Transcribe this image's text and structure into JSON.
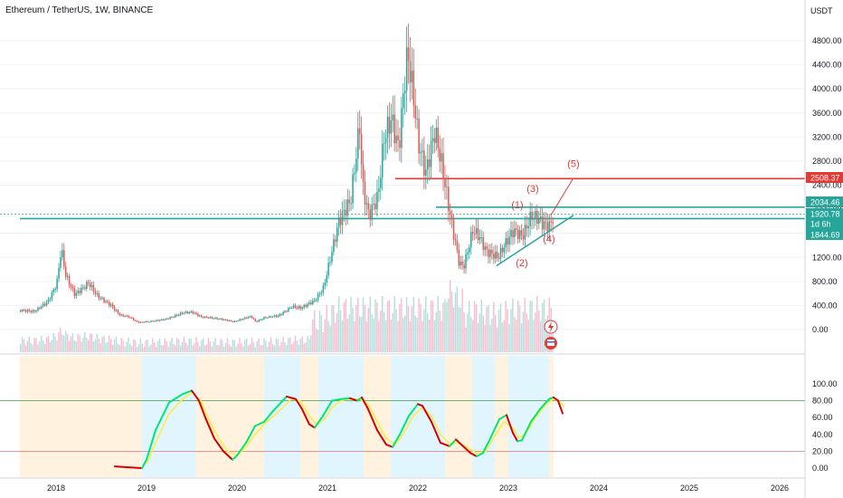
{
  "header": {
    "title": "Ethereum / TetherUS, 1W, BINANCE",
    "currency": "USDT"
  },
  "colors": {
    "up": "#26a69a",
    "down": "#ef5350",
    "teal_line": "#26a69a",
    "resistance": "#e53935",
    "stoch_k": "#00e676",
    "stoch_d": "#ffeb3b",
    "stoch_down": "#d50000",
    "band_blue": "#e1f5fe",
    "band_orange": "#fff3e0"
  },
  "chart_data": [
    {
      "type": "candlestick",
      "symbol": "Ethereum / TetherUS",
      "interval": "1W",
      "exchange": "BINANCE",
      "y_ticks": [
        "4800.00",
        "4400.00",
        "4000.00",
        "3600.00",
        "3200.00",
        "2800.00",
        "2400.00",
        "2000.00",
        "1600.00",
        "1200.00",
        "800.00",
        "400.00",
        "0.00"
      ],
      "y_range": [
        0,
        5000
      ],
      "x_ticks": [
        "2018",
        "2019",
        "2020",
        "2021",
        "2022",
        "2023",
        "2024",
        "2025",
        "2026"
      ],
      "price_labels": [
        {
          "value": 2508.37,
          "text": "2508.37",
          "color": "#e53935"
        },
        {
          "value": 2034.46,
          "text": "2034.46",
          "color": "#26a69a"
        },
        {
          "value": 1920.78,
          "text": "1920.78",
          "color": "#26a69a"
        },
        {
          "value": 1920.78,
          "text": "1d 6h",
          "color": "#26a69a"
        },
        {
          "value": 1844.69,
          "text": "1844.69",
          "color": "#26a69a"
        }
      ],
      "horizontal_lines": [
        {
          "value": 2508.37,
          "from": 2021.75,
          "color": "#e53935"
        },
        {
          "value": 2034.46,
          "from": 2022.2,
          "color": "#26a69a"
        },
        {
          "value": 1844.69,
          "from": 2017.6,
          "color": "#26a69a"
        }
      ],
      "trendline": {
        "from": [
          2022.87,
          1060
        ],
        "to": [
          2023.72,
          1900
        ]
      },
      "projection": {
        "from": [
          2023.47,
          1900
        ],
        "to": [
          2023.72,
          2520
        ]
      },
      "wave_labels": [
        {
          "text": "(1)",
          "x": 2023.1,
          "y": 2020
        },
        {
          "text": "(2)",
          "x": 2023.15,
          "y": 1050
        },
        {
          "text": "(3)",
          "x": 2023.27,
          "y": 2290
        },
        {
          "text": "(4)",
          "x": 2023.45,
          "y": 1450
        },
        {
          "text": "(5)",
          "x": 2023.72,
          "y": 2700
        }
      ],
      "series": [
        {
          "name": "price",
          "points": [
            [
              2017.6,
              320
            ],
            [
              2017.75,
              300
            ],
            [
              2017.9,
              460
            ],
            [
              2018.0,
              760
            ],
            [
              2018.05,
              1350
            ],
            [
              2018.1,
              900
            ],
            [
              2018.2,
              580
            ],
            [
              2018.3,
              700
            ],
            [
              2018.35,
              780
            ],
            [
              2018.45,
              560
            ],
            [
              2018.6,
              400
            ],
            [
              2018.7,
              240
            ],
            [
              2018.8,
              210
            ],
            [
              2018.9,
              120
            ],
            [
              2019.0,
              130
            ],
            [
              2019.2,
              170
            ],
            [
              2019.4,
              280
            ],
            [
              2019.5,
              290
            ],
            [
              2019.6,
              210
            ],
            [
              2019.8,
              180
            ],
            [
              2019.95,
              130
            ],
            [
              2020.15,
              220
            ],
            [
              2020.2,
              130
            ],
            [
              2020.3,
              200
            ],
            [
              2020.45,
              230
            ],
            [
              2020.6,
              380
            ],
            [
              2020.7,
              360
            ],
            [
              2020.85,
              480
            ],
            [
              2020.95,
              700
            ],
            [
              2021.05,
              1350
            ],
            [
              2021.12,
              1800
            ],
            [
              2021.25,
              2150
            ],
            [
              2021.35,
              3400
            ],
            [
              2021.38,
              2400
            ],
            [
              2021.45,
              1900
            ],
            [
              2021.55,
              2200
            ],
            [
              2021.62,
              3200
            ],
            [
              2021.7,
              3500
            ],
            [
              2021.78,
              3000
            ],
            [
              2021.85,
              4200
            ],
            [
              2021.88,
              4600
            ],
            [
              2021.95,
              3800
            ],
            [
              2022.0,
              3100
            ],
            [
              2022.08,
              2600
            ],
            [
              2022.18,
              3300
            ],
            [
              2022.25,
              2800
            ],
            [
              2022.35,
              1900
            ],
            [
              2022.45,
              1100
            ],
            [
              2022.5,
              1050
            ],
            [
              2022.6,
              1650
            ],
            [
              2022.67,
              1550
            ],
            [
              2022.75,
              1300
            ],
            [
              2022.82,
              1250
            ],
            [
              2022.88,
              1200
            ],
            [
              2022.95,
              1400
            ],
            [
              2023.05,
              1650
            ],
            [
              2023.15,
              1550
            ],
            [
              2023.25,
              1900
            ],
            [
              2023.32,
              1850
            ],
            [
              2023.38,
              1750
            ],
            [
              2023.45,
              1720
            ],
            [
              2023.5,
              1920
            ]
          ]
        }
      ]
    },
    {
      "type": "line",
      "indicator": "stochastic RSI",
      "y_ticks": [
        "100.00",
        "80.00",
        "60.00",
        "40.00",
        "20.00",
        "0.00"
      ],
      "y_range": [
        -8,
        108
      ],
      "levels": [
        80,
        20
      ],
      "series": [
        {
          "name": "K",
          "points": [
            [
              2018.65,
              2
            ],
            [
              2018.8,
              1
            ],
            [
              2018.95,
              0
            ],
            [
              2019.0,
              10
            ],
            [
              2019.1,
              45
            ],
            [
              2019.25,
              78
            ],
            [
              2019.4,
              88
            ],
            [
              2019.5,
              92
            ],
            [
              2019.58,
              80
            ],
            [
              2019.65,
              60
            ],
            [
              2019.75,
              35
            ],
            [
              2019.85,
              20
            ],
            [
              2019.95,
              10
            ],
            [
              2020.0,
              15
            ],
            [
              2020.1,
              30
            ],
            [
              2020.2,
              50
            ],
            [
              2020.3,
              55
            ],
            [
              2020.4,
              68
            ],
            [
              2020.55,
              85
            ],
            [
              2020.65,
              82
            ],
            [
              2020.72,
              70
            ],
            [
              2020.8,
              52
            ],
            [
              2020.86,
              48
            ],
            [
              2020.95,
              62
            ],
            [
              2021.05,
              80
            ],
            [
              2021.15,
              82
            ],
            [
              2021.25,
              83
            ],
            [
              2021.33,
              80
            ],
            [
              2021.38,
              84
            ],
            [
              2021.45,
              70
            ],
            [
              2021.55,
              45
            ],
            [
              2021.65,
              28
            ],
            [
              2021.72,
              25
            ],
            [
              2021.8,
              40
            ],
            [
              2021.9,
              62
            ],
            [
              2022.0,
              76
            ],
            [
              2022.05,
              74
            ],
            [
              2022.15,
              55
            ],
            [
              2022.25,
              30
            ],
            [
              2022.35,
              26
            ],
            [
              2022.42,
              34
            ],
            [
              2022.5,
              26
            ],
            [
              2022.58,
              18
            ],
            [
              2022.65,
              14
            ],
            [
              2022.72,
              18
            ],
            [
              2022.8,
              35
            ],
            [
              2022.9,
              58
            ],
            [
              2022.98,
              63
            ],
            [
              2023.05,
              42
            ],
            [
              2023.1,
              32
            ],
            [
              2023.15,
              33
            ],
            [
              2023.25,
              55
            ],
            [
              2023.35,
              70
            ],
            [
              2023.45,
              82
            ],
            [
              2023.5,
              84
            ],
            [
              2023.55,
              80
            ],
            [
              2023.6,
              65
            ]
          ]
        },
        {
          "name": "D",
          "points": [
            [
              2019.0,
              5
            ],
            [
              2019.1,
              30
            ],
            [
              2019.25,
              65
            ],
            [
              2019.4,
              82
            ],
            [
              2019.5,
              90
            ],
            [
              2019.6,
              80
            ],
            [
              2019.7,
              55
            ],
            [
              2019.8,
              35
            ],
            [
              2019.9,
              20
            ],
            [
              2020.0,
              15
            ],
            [
              2020.1,
              25
            ],
            [
              2020.2,
              40
            ],
            [
              2020.3,
              52
            ],
            [
              2020.45,
              66
            ],
            [
              2020.6,
              82
            ],
            [
              2020.7,
              80
            ],
            [
              2020.8,
              62
            ],
            [
              2020.88,
              52
            ],
            [
              2020.97,
              58
            ],
            [
              2021.05,
              72
            ],
            [
              2021.15,
              80
            ],
            [
              2021.25,
              82
            ],
            [
              2021.35,
              82
            ],
            [
              2021.45,
              76
            ],
            [
              2021.55,
              55
            ],
            [
              2021.65,
              35
            ],
            [
              2021.75,
              28
            ],
            [
              2021.85,
              42
            ],
            [
              2021.95,
              62
            ],
            [
              2022.05,
              72
            ],
            [
              2022.15,
              62
            ],
            [
              2022.25,
              40
            ],
            [
              2022.35,
              29
            ],
            [
              2022.45,
              30
            ],
            [
              2022.55,
              24
            ],
            [
              2022.65,
              18
            ],
            [
              2022.75,
              20
            ],
            [
              2022.85,
              38
            ],
            [
              2022.95,
              55
            ],
            [
              2023.05,
              48
            ],
            [
              2023.12,
              36
            ],
            [
              2023.2,
              42
            ],
            [
              2023.3,
              60
            ],
            [
              2023.42,
              76
            ],
            [
              2023.5,
              82
            ],
            [
              2023.58,
              78
            ],
            [
              2023.62,
              72
            ]
          ]
        }
      ]
    }
  ]
}
